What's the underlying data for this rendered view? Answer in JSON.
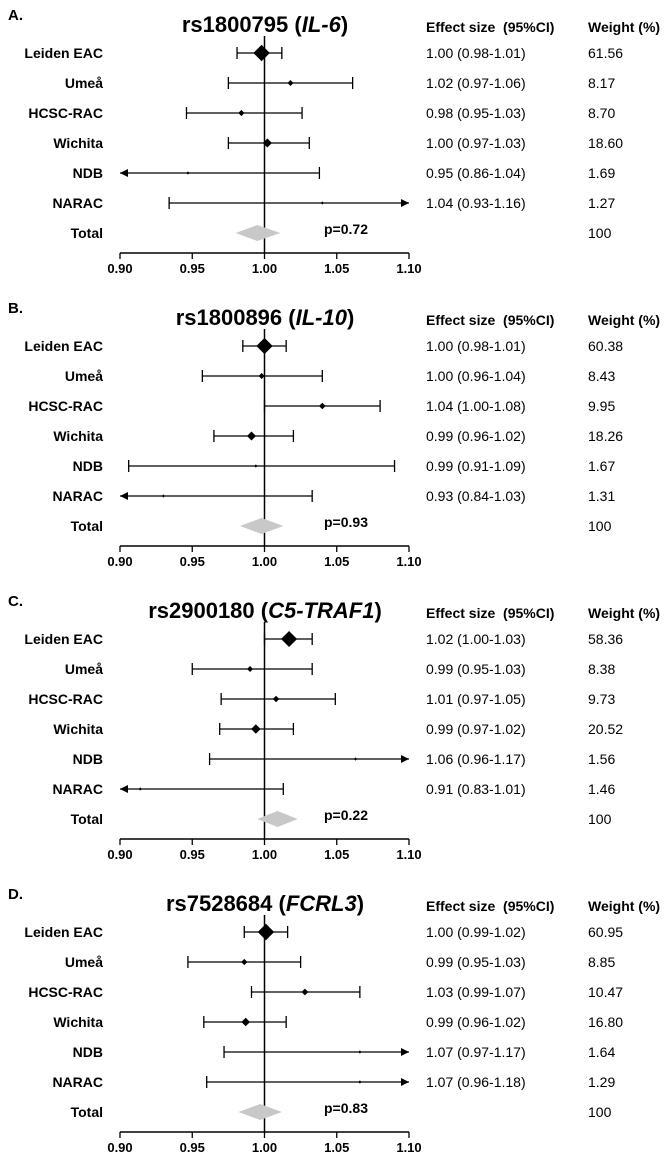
{
  "chart_data": [
    {
      "type": "forest",
      "panel": "A.",
      "snp": "rs1800795",
      "gene": "IL-6",
      "headers": {
        "effect": "Effect size  (95%CI)",
        "weight": "Weight (%)"
      },
      "xlim": [
        0.9,
        1.1
      ],
      "ticks": [
        "0.90",
        "0.95",
        "1.00",
        "1.05",
        "1.10"
      ],
      "tick_values": [
        0.9,
        0.95,
        1.0,
        1.05,
        1.1
      ],
      "rows": [
        {
          "study": "Leiden EAC",
          "es": 0.998,
          "lo": 0.981,
          "hi": 1.012,
          "ci_text": "1.00 (0.98-1.01)",
          "weight": "61.56",
          "w": 61.56
        },
        {
          "study": "Umeå",
          "es": 1.018,
          "lo": 0.975,
          "hi": 1.061,
          "ci_text": "1.02 (0.97-1.06)",
          "weight": "8.17",
          "w": 8.17
        },
        {
          "study": "HCSC-RAC",
          "es": 0.984,
          "lo": 0.946,
          "hi": 1.026,
          "ci_text": "0.98 (0.95-1.03)",
          "weight": "8.70",
          "w": 8.7
        },
        {
          "study": "Wichita",
          "es": 1.002,
          "lo": 0.975,
          "hi": 1.031,
          "ci_text": "1.00 (0.97-1.03)",
          "weight": "18.60",
          "w": 18.6
        },
        {
          "study": "NDB",
          "es": 0.947,
          "lo": 0.86,
          "hi": 1.038,
          "ci_text": "0.95 (0.86-1.04)",
          "weight": "1.69",
          "w": 1.69
        },
        {
          "study": "NARAC",
          "es": 1.04,
          "lo": 0.934,
          "hi": 1.16,
          "ci_text": "1.04 (0.93-1.16)",
          "weight": "1.27",
          "w": 1.27
        }
      ],
      "total": {
        "label": "Total",
        "es": 0.995,
        "lo": 0.98,
        "hi": 1.011,
        "weight": "100",
        "p": "p=0.72"
      }
    },
    {
      "type": "forest",
      "panel": "B.",
      "snp": "rs1800896",
      "gene": "IL-10",
      "headers": {
        "effect": "Effect size  (95%CI)",
        "weight": "Weight (%)"
      },
      "xlim": [
        0.9,
        1.1
      ],
      "ticks": [
        "0.90",
        "0.95",
        "1.00",
        "1.05",
        "1.10"
      ],
      "tick_values": [
        0.9,
        0.95,
        1.0,
        1.05,
        1.1
      ],
      "rows": [
        {
          "study": "Leiden EAC",
          "es": 1.0,
          "lo": 0.985,
          "hi": 1.015,
          "ci_text": "1.00 (0.98-1.01)",
          "weight": "60.38",
          "w": 60.38
        },
        {
          "study": "Umeå",
          "es": 0.998,
          "lo": 0.957,
          "hi": 1.04,
          "ci_text": "1.00 (0.96-1.04)",
          "weight": "8.43",
          "w": 8.43
        },
        {
          "study": "HCSC-RAC",
          "es": 1.04,
          "lo": 1.0,
          "hi": 1.08,
          "ci_text": "1.04 (1.00-1.08)",
          "weight": "9.95",
          "w": 9.95
        },
        {
          "study": "Wichita",
          "es": 0.991,
          "lo": 0.965,
          "hi": 1.02,
          "ci_text": "0.99 (0.96-1.02)",
          "weight": "18.26",
          "w": 18.26
        },
        {
          "study": "NDB",
          "es": 0.994,
          "lo": 0.906,
          "hi": 1.09,
          "ci_text": "0.99 (0.91-1.09)",
          "weight": "1.67",
          "w": 1.67
        },
        {
          "study": "NARAC",
          "es": 0.93,
          "lo": 0.84,
          "hi": 1.033,
          "ci_text": "0.93 (0.84-1.03)",
          "weight": "1.31",
          "w": 1.31
        }
      ],
      "total": {
        "label": "Total",
        "es": 0.998,
        "lo": 0.983,
        "hi": 1.013,
        "weight": "100",
        "p": "p=0.93"
      }
    },
    {
      "type": "forest",
      "panel": "C.",
      "snp": "rs2900180",
      "gene": "C5-TRAF1",
      "headers": {
        "effect": "Effect size  (95%CI)",
        "weight": "Weight (%)"
      },
      "xlim": [
        0.9,
        1.1
      ],
      "ticks": [
        "0.90",
        "0.95",
        "1.00",
        "1.05",
        "1.10"
      ],
      "tick_values": [
        0.9,
        0.95,
        1.0,
        1.05,
        1.1
      ],
      "rows": [
        {
          "study": "Leiden EAC",
          "es": 1.017,
          "lo": 1.0,
          "hi": 1.033,
          "ci_text": "1.02 (1.00-1.03)",
          "weight": "58.36",
          "w": 58.36
        },
        {
          "study": "Umeå",
          "es": 0.99,
          "lo": 0.95,
          "hi": 1.033,
          "ci_text": "0.99 (0.95-1.03)",
          "weight": "8.38",
          "w": 8.38
        },
        {
          "study": "HCSC-RAC",
          "es": 1.008,
          "lo": 0.97,
          "hi": 1.049,
          "ci_text": "1.01 (0.97-1.05)",
          "weight": "9.73",
          "w": 9.73
        },
        {
          "study": "Wichita",
          "es": 0.994,
          "lo": 0.969,
          "hi": 1.02,
          "ci_text": "0.99 (0.97-1.02)",
          "weight": "20.52",
          "w": 20.52
        },
        {
          "study": "NDB",
          "es": 1.063,
          "lo": 0.962,
          "hi": 1.17,
          "ci_text": "1.06 (0.96-1.17)",
          "weight": "1.56",
          "w": 1.56
        },
        {
          "study": "NARAC",
          "es": 0.914,
          "lo": 0.83,
          "hi": 1.013,
          "ci_text": "0.91 (0.83-1.01)",
          "weight": "1.46",
          "w": 1.46
        }
      ],
      "total": {
        "label": "Total",
        "es": 1.009,
        "lo": 0.995,
        "hi": 1.023,
        "weight": "100",
        "p": "p=0.22"
      }
    },
    {
      "type": "forest",
      "panel": "D.",
      "snp": "rs7528684",
      "gene": "FCRL3",
      "headers": {
        "effect": "Effect size  (95%CI)",
        "weight": "Weight (%)"
      },
      "xlim": [
        0.9,
        1.1
      ],
      "ticks": [
        "0.90",
        "0.95",
        "1.00",
        "1.05",
        "1.10"
      ],
      "tick_values": [
        0.9,
        0.95,
        1.0,
        1.05,
        1.1
      ],
      "rows": [
        {
          "study": "Leiden EAC",
          "es": 1.001,
          "lo": 0.986,
          "hi": 1.016,
          "ci_text": "1.00 (0.99-1.02)",
          "weight": "60.95",
          "w": 60.95
        },
        {
          "study": "Umeå",
          "es": 0.986,
          "lo": 0.947,
          "hi": 1.025,
          "ci_text": "0.99 (0.95-1.03)",
          "weight": "8.85",
          "w": 8.85
        },
        {
          "study": "HCSC-RAC",
          "es": 1.028,
          "lo": 0.991,
          "hi": 1.066,
          "ci_text": "1.03 (0.99-1.07)",
          "weight": "10.47",
          "w": 10.47
        },
        {
          "study": "Wichita",
          "es": 0.987,
          "lo": 0.958,
          "hi": 1.015,
          "ci_text": "0.99 (0.96-1.02)",
          "weight": "16.80",
          "w": 16.8
        },
        {
          "study": "NDB",
          "es": 1.066,
          "lo": 0.972,
          "hi": 1.17,
          "ci_text": "1.07 (0.97-1.17)",
          "weight": "1.64",
          "w": 1.64
        },
        {
          "study": "NARAC",
          "es": 1.066,
          "lo": 0.96,
          "hi": 1.18,
          "ci_text": "1.07 (0.96-1.18)",
          "weight": "1.29",
          "w": 1.29
        }
      ],
      "total": {
        "label": "Total",
        "es": 0.997,
        "lo": 0.982,
        "hi": 1.012,
        "weight": "100",
        "p": "p=0.83"
      }
    }
  ],
  "colors": {
    "ink": "#000000",
    "total_diamond": "#c8c8c8"
  }
}
